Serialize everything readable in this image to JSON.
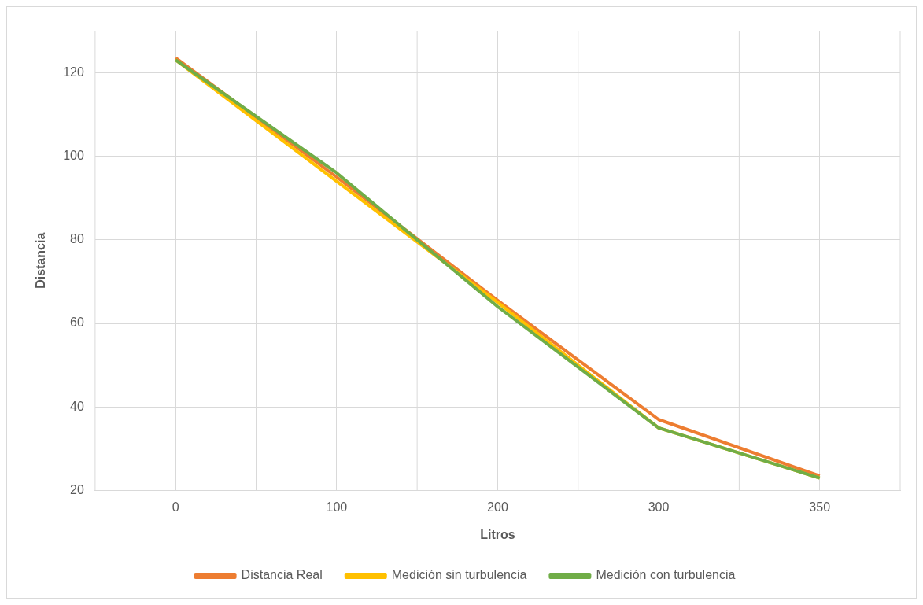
{
  "chart_data": {
    "type": "line",
    "xlabel": "Litros",
    "ylabel": "Distancia",
    "categories": [
      "0",
      "100",
      "200",
      "300",
      "350"
    ],
    "series": [
      {
        "name": "Distancia Real",
        "color": "#ed7d31",
        "values": [
          123.5,
          95,
          65.5,
          37,
          23.5
        ]
      },
      {
        "name": "Medición sin turbulencia",
        "color": "#ffc000",
        "values": [
          123,
          94,
          65,
          35,
          23
        ]
      },
      {
        "name": "Medición con turbulencia",
        "color": "#70ad47",
        "values": [
          123,
          96,
          64,
          35,
          23
        ]
      }
    ],
    "ylim": [
      20,
      130
    ],
    "yticks": [
      20,
      40,
      60,
      80,
      100,
      120
    ],
    "grid": true,
    "legend": "bottom",
    "marker": "none",
    "line_style": "solid"
  }
}
